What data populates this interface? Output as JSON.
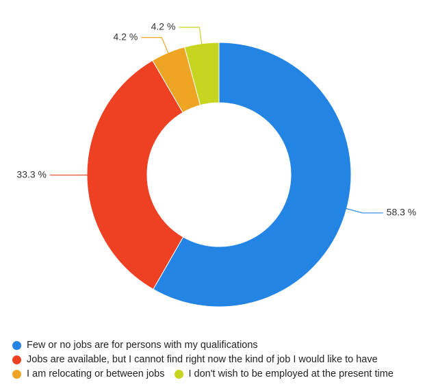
{
  "chart_data": {
    "type": "donut",
    "categories": [
      "Few or no jobs are for persons with my qualifications",
      "Jobs are available, but I cannot find right now the kind of job I would like to have",
      "I am relocating or between jobs",
      "I don't wish to be employed at the present time"
    ],
    "values": [
      58.3,
      33.3,
      4.2,
      4.2
    ],
    "value_labels": [
      "58.3 %",
      "33.3 %",
      "4.2 %",
      "4.2 %"
    ],
    "colors": [
      "#2384e3",
      "#ee4123",
      "#eea524",
      "#c7d420"
    ]
  }
}
